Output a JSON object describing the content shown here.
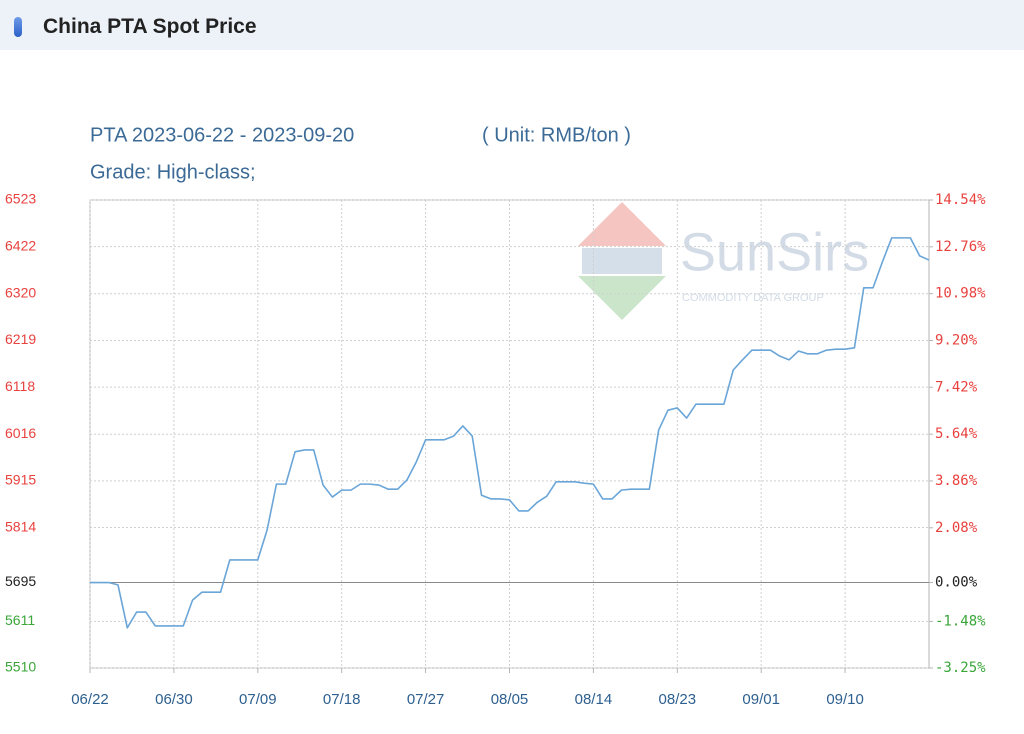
{
  "header": {
    "title": "China PTA Spot Price"
  },
  "chart_data": {
    "type": "line",
    "subtitle": "PTA 2023-06-22 - 2023-09-20",
    "unit": "( Unit: RMB/ton )",
    "grade": "Grade: High-class;",
    "watermark": {
      "brand": "SunSirs",
      "tagline": "COMMODITY DATA GROUP"
    },
    "categories": [
      "06/22",
      null,
      null,
      null,
      null,
      null,
      null,
      null,
      null,
      "06/30",
      null,
      null,
      null,
      null,
      null,
      null,
      null,
      null,
      "07/09",
      null,
      null,
      null,
      null,
      null,
      null,
      null,
      null,
      "07/18",
      null,
      null,
      null,
      null,
      null,
      null,
      null,
      null,
      "07/27",
      null,
      null,
      null,
      null,
      null,
      null,
      null,
      null,
      "08/05",
      null,
      null,
      null,
      null,
      null,
      null,
      null,
      null,
      "08/14",
      null,
      null,
      null,
      null,
      null,
      null,
      null,
      null,
      "08/23",
      null,
      null,
      null,
      null,
      null,
      null,
      null,
      null,
      "09/01",
      null,
      null,
      null,
      null,
      null,
      null,
      null,
      null,
      "09/10",
      null,
      null,
      null,
      null,
      null,
      null,
      null,
      null,
      null
    ],
    "series": [
      {
        "color": "#6aa5d8",
        "values": [
          5695,
          5695,
          5695,
          5690,
          5597,
          5631,
          5631,
          5601,
          5601,
          5601,
          5601,
          5657,
          5674,
          5674,
          5674,
          5744,
          5744,
          5744,
          5744,
          5809,
          5908,
          5908,
          5978,
          5982,
          5982,
          5906,
          5880,
          5895,
          5895,
          5908,
          5908,
          5906,
          5897,
          5897,
          5917,
          5956,
          6004,
          6004,
          6004,
          6012,
          6034,
          6012,
          5884,
          5876,
          5876,
          5874,
          5850,
          5850,
          5869,
          5882,
          5913,
          5913,
          5913,
          5910,
          5908,
          5876,
          5876,
          5895,
          5897,
          5897,
          5897,
          6025,
          6068,
          6073,
          6051,
          6081,
          6081,
          6081,
          6081,
          6155,
          6177,
          6198,
          6198,
          6198,
          6185,
          6177,
          6196,
          6190,
          6190,
          6198,
          6200,
          6200,
          6203,
          6333,
          6333,
          6389,
          6441,
          6441,
          6441,
          6402,
          6393
        ]
      }
    ],
    "ylim": [
      5510,
      6523
    ],
    "yticks": [
      5510,
      5611,
      5695,
      5814,
      5915,
      6016,
      6118,
      6219,
      6320,
      6422,
      6523
    ],
    "baseline": 5695,
    "y2lim": [
      -3.25,
      14.54
    ],
    "y2ticks": [
      {
        "value": -3.25,
        "label": "-3.25%"
      },
      {
        "value": -1.48,
        "label": "-1.48%"
      },
      {
        "value": 0,
        "label": "0.00%"
      },
      {
        "value": 2.08,
        "label": "2.08%"
      },
      {
        "value": 3.86,
        "label": "3.86%"
      },
      {
        "value": 5.64,
        "label": "5.64%"
      },
      {
        "value": 7.42,
        "label": "7.42%"
      },
      {
        "value": 9.2,
        "label": "9.20%"
      },
      {
        "value": 10.98,
        "label": "10.98%"
      },
      {
        "value": 12.76,
        "label": "12.76%"
      },
      {
        "value": 14.54,
        "label": "14.54%"
      }
    ],
    "grid": true,
    "tick_colors": {
      "above": "#e8423f",
      "base": "#222222",
      "below": "#3aa63a"
    }
  }
}
